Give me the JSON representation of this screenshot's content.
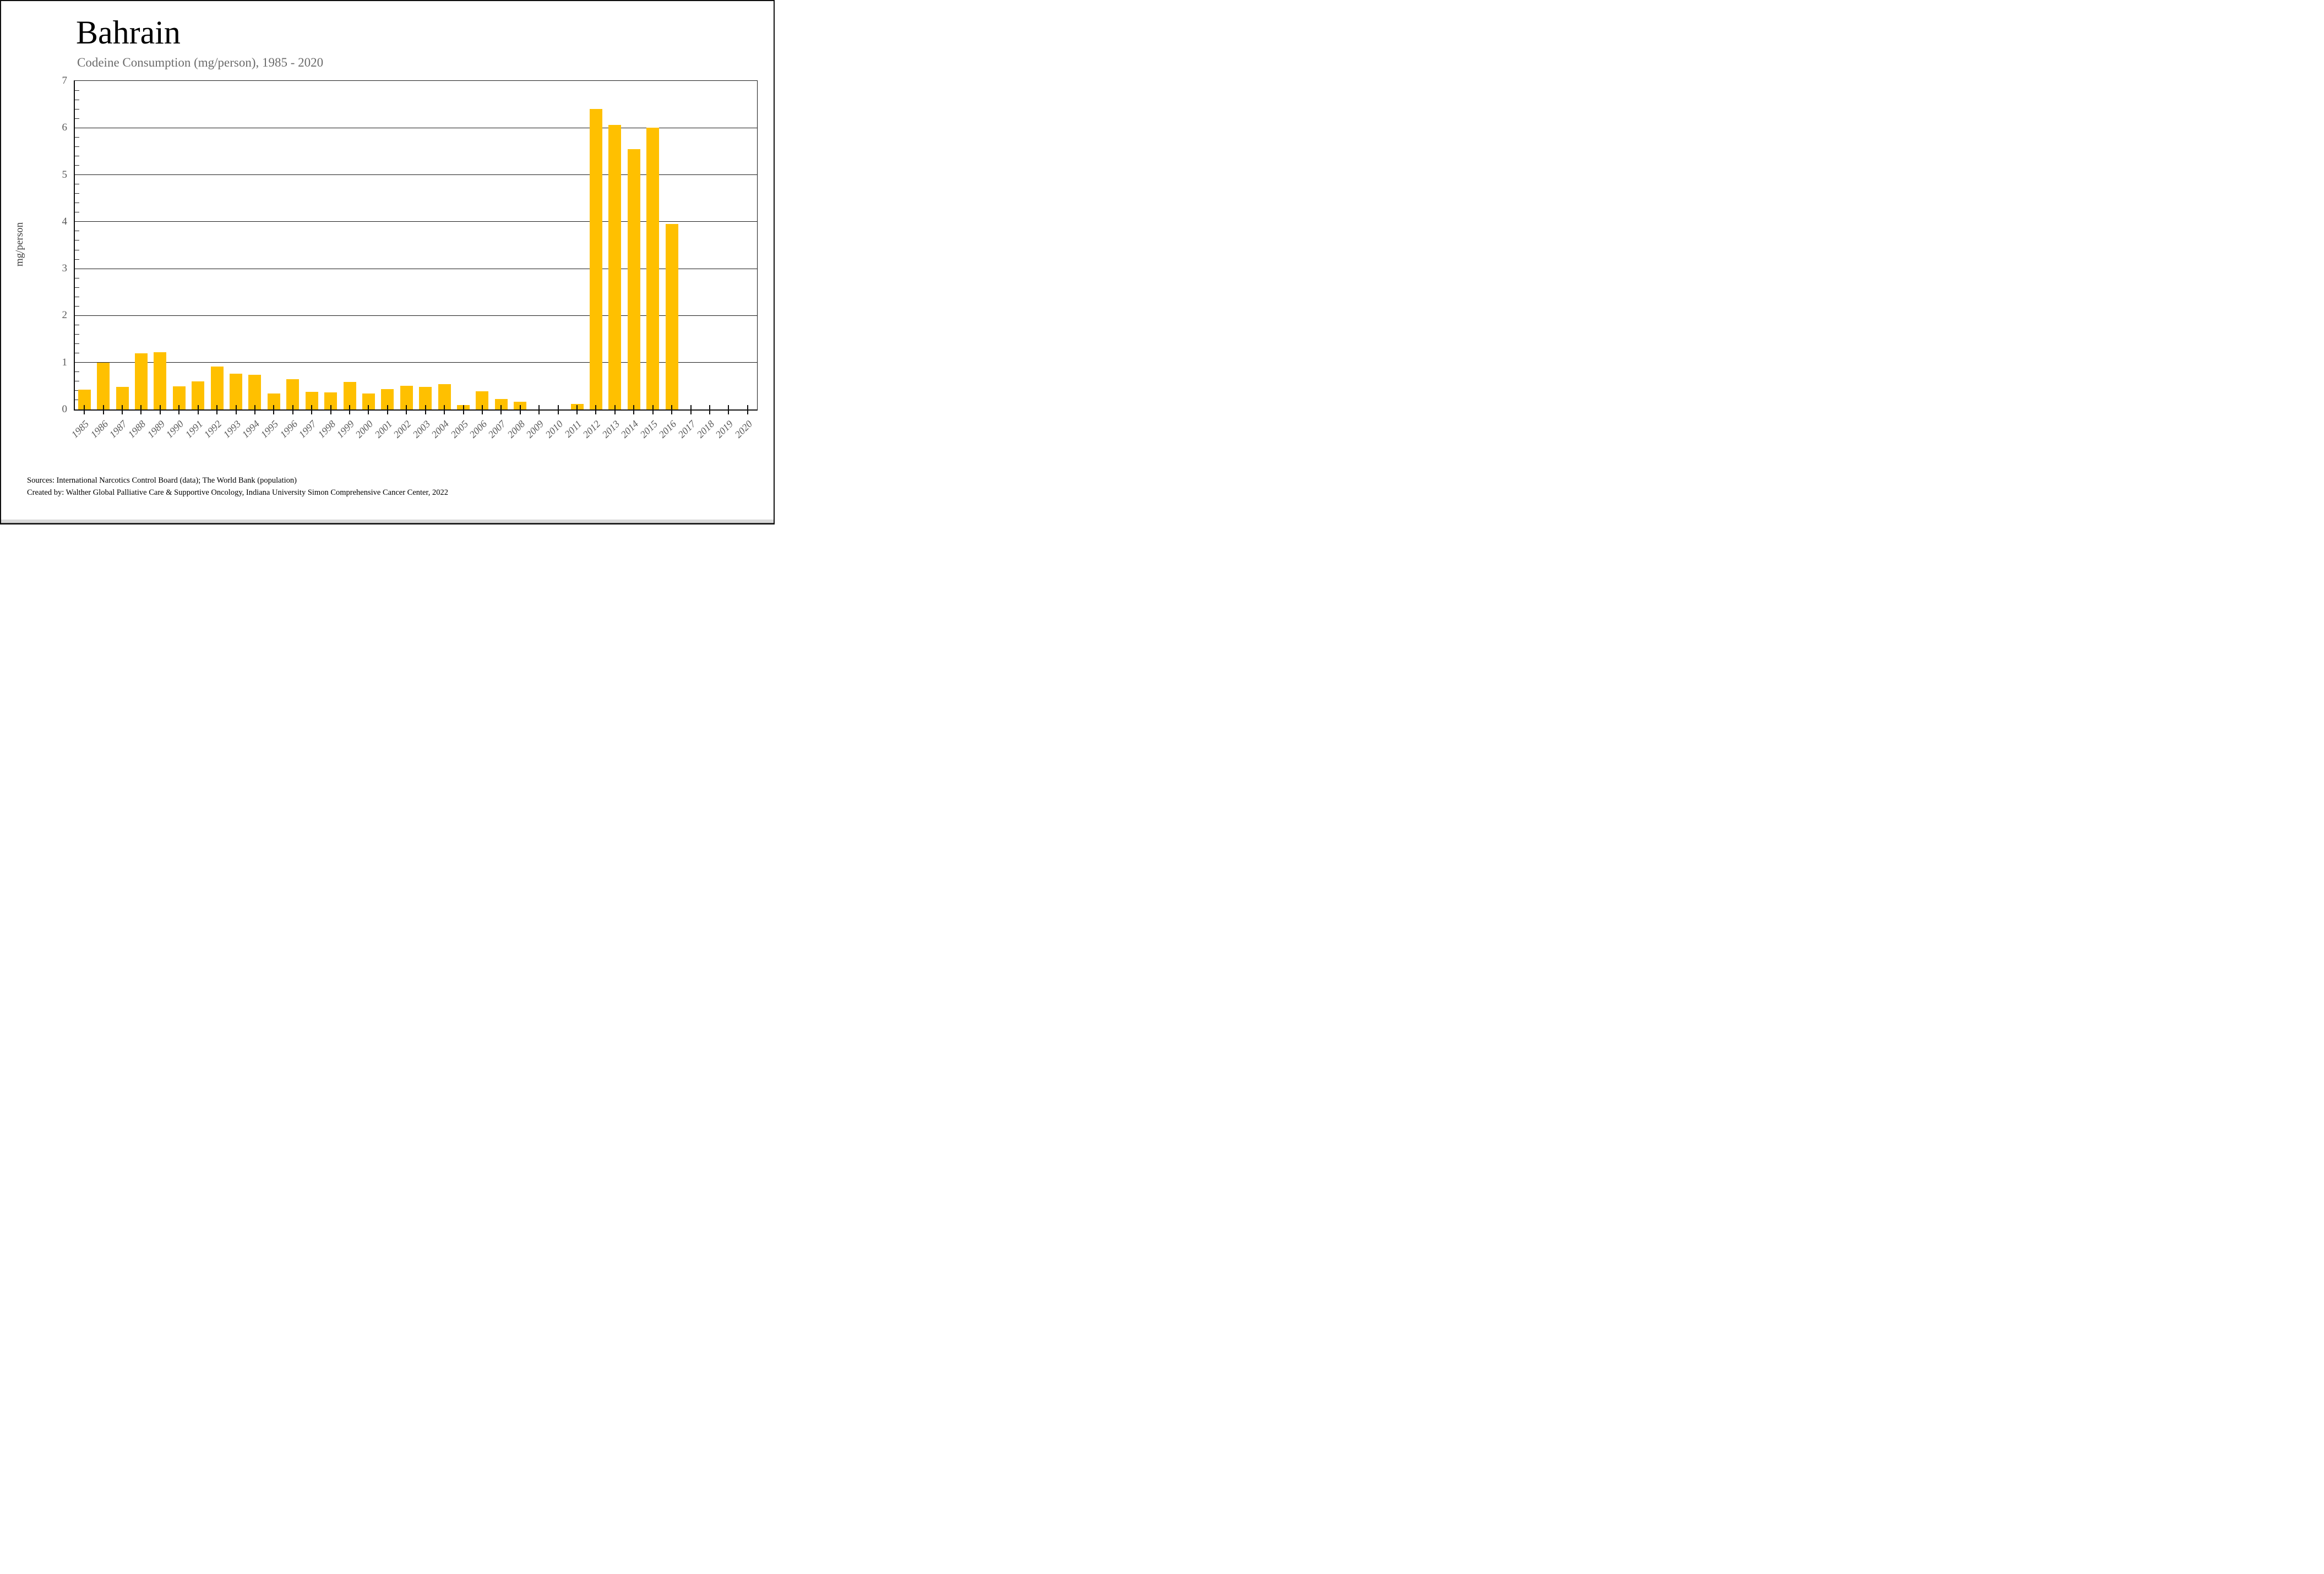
{
  "chart_data": {
    "type": "bar",
    "title": "Bahrain",
    "subtitle": "Codeine Consumption (mg/person), 1985 - 2020",
    "ylabel": "mg/person",
    "xlabel": "",
    "categories": [
      "1985",
      "1986",
      "1987",
      "1988",
      "1989",
      "1990",
      "1991",
      "1992",
      "1993",
      "1994",
      "1995",
      "1996",
      "1997",
      "1998",
      "1999",
      "2000",
      "2001",
      "2002",
      "2003",
      "2004",
      "2005",
      "2006",
      "2007",
      "2008",
      "2009",
      "2010",
      "2011",
      "2012",
      "2013",
      "2014",
      "2015",
      "2016",
      "2017",
      "2018",
      "2019",
      "2020"
    ],
    "values": [
      0.42,
      1.0,
      0.48,
      1.2,
      1.22,
      0.49,
      0.6,
      0.92,
      0.76,
      0.74,
      0.34,
      0.64,
      0.38,
      0.36,
      0.59,
      0.34,
      0.43,
      0.51,
      0.48,
      0.54,
      0.09,
      0.39,
      0.22,
      0.17,
      0,
      0,
      0.12,
      6.4,
      6.06,
      5.55,
      6.0,
      3.95,
      0,
      0,
      0,
      0
    ],
    "ylim": [
      0,
      7
    ],
    "ytick_step": 1,
    "yminor_step": 0.2,
    "grid": "horizontal-major",
    "legend_position": "none",
    "bar_color": "#FFC000",
    "axis_color": "#1a1a1a",
    "tick_label_color": "#595959",
    "subtitle_color": "#6b6b6b"
  },
  "footer": {
    "line1": "Sources: International Narcotics Control Board (data); The World Bank (population)",
    "line2": "Created by: Walther Global Palliative Care & Supportive Oncology, Indiana University Simon Comprehensive Cancer Center, 2022"
  }
}
